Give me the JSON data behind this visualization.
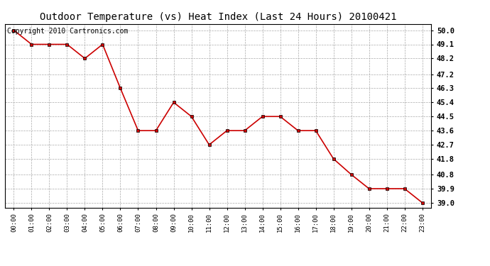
{
  "title": "Outdoor Temperature (vs) Heat Index (Last 24 Hours) 20100421",
  "copyright_text": "Copyright 2010 Cartronics.com",
  "x_labels": [
    "00:00",
    "01:00",
    "02:00",
    "03:00",
    "04:00",
    "05:00",
    "06:00",
    "07:00",
    "08:00",
    "09:00",
    "10:00",
    "11:00",
    "12:00",
    "13:00",
    "14:00",
    "15:00",
    "16:00",
    "17:00",
    "18:00",
    "19:00",
    "20:00",
    "21:00",
    "22:00",
    "23:00"
  ],
  "y_values": [
    50.0,
    49.1,
    49.1,
    49.1,
    48.2,
    49.1,
    46.3,
    43.6,
    43.6,
    45.4,
    44.5,
    42.7,
    43.6,
    43.6,
    44.5,
    44.5,
    43.6,
    43.6,
    41.8,
    40.8,
    39.9,
    39.9,
    39.9,
    39.0
  ],
  "y_ticks": [
    39.0,
    39.9,
    40.8,
    41.8,
    42.7,
    43.6,
    44.5,
    45.4,
    46.3,
    47.2,
    48.2,
    49.1,
    50.0
  ],
  "ylim": [
    38.7,
    50.4
  ],
  "line_color": "#cc0000",
  "marker_color": "#000000",
  "bg_color": "#ffffff",
  "grid_color": "#aaaaaa",
  "title_fontsize": 10,
  "copyright_fontsize": 7
}
